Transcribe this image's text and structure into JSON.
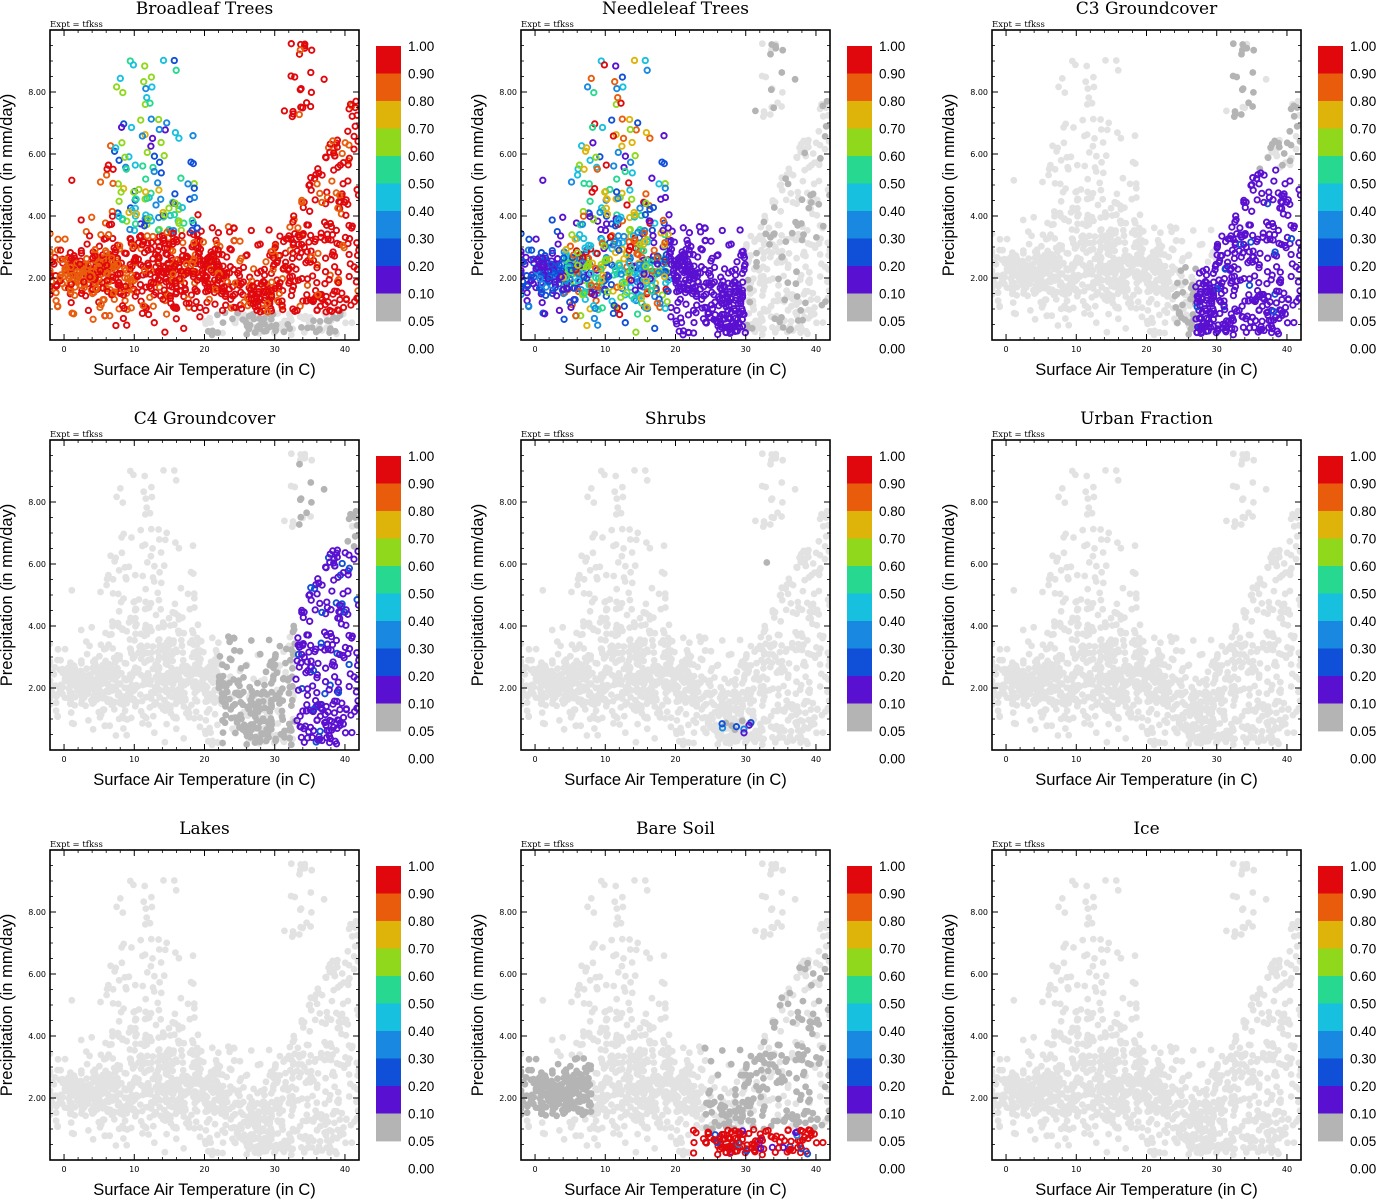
{
  "chart_data": {
    "type": "scatter",
    "layout": "3x3 grid of scatter panels",
    "expt_label": "Expt = tfkss",
    "xlabel": "Surface Air Temperature (in C)",
    "ylabel": "Precipitation (in mm/day)",
    "xlim": [
      -2,
      42
    ],
    "ylim": [
      0,
      10
    ],
    "x_ticks": [
      "0",
      "10",
      "20",
      "30",
      "40"
    ],
    "y_ticks": [
      "2.00",
      "4.00",
      "6.00",
      "8.00"
    ],
    "colorbar": {
      "labels": [
        "1.00",
        "0.90",
        "0.80",
        "0.70",
        "0.60",
        "0.50",
        "0.40",
        "0.30",
        "0.20",
        "0.10",
        "0.05",
        "0.00"
      ],
      "colors": [
        "#e0080c",
        "#e85c0c",
        "#dfb40a",
        "#8fd81c",
        "#26d890",
        "#18c0e0",
        "#1888e0",
        "#1050d8",
        "#5a10d0",
        "#b4b4b4"
      ]
    },
    "background_color": "#e2e2e2",
    "panels": [
      {
        "title": "Broadleaf Trees",
        "description": "Fraction high (0.8-1.0) across most of the 0-42 C range; lower values near 8-18 C at 3-8 mm/day."
      },
      {
        "title": "Needleleaf Trees",
        "description": "High fractions below 20 C; 0.05-0.2 values at 18-30 C; zero above 30 C."
      },
      {
        "title": "C3 Groundcover",
        "description": "Fraction ~0.05 at 25-42 C, 0.5-5 mm/day; zero elsewhere."
      },
      {
        "title": "C4 Groundcover",
        "description": "Fraction ~0.05-0.2 at 34-42 C, 1-6 mm/day."
      },
      {
        "title": "Shrubs",
        "description": "Few points near 25-30 C and 0.5-1 mm/day with fraction 0.1-0.4."
      },
      {
        "title": "Urban Fraction",
        "description": "No non-zero values."
      },
      {
        "title": "Lakes",
        "description": "No non-zero values."
      },
      {
        "title": "Bare Soil",
        "description": "Fraction ~0.9-1.0 at 22-40 C and 0-1 mm/day; zeros at -2-8 C and 22-42 C."
      },
      {
        "title": "Ice",
        "description": "No non-zero values."
      }
    ]
  }
}
